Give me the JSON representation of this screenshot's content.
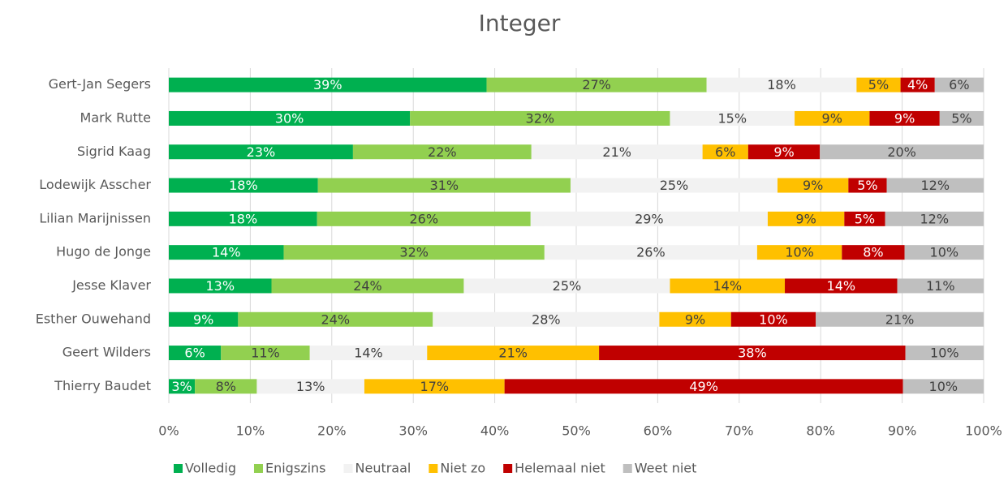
{
  "chart_data": {
    "type": "stacked_bar_horizontal",
    "title": "Integer",
    "categories": [
      "Gert-Jan Segers",
      "Mark Rutte",
      "Sigrid Kaag",
      "Lodewijk Asscher",
      "Lilian Marijnissen",
      "Hugo de Jonge",
      "Jesse Klaver",
      "Esther Ouwehand",
      "Geert Wilders",
      "Thierry Baudet"
    ],
    "series": [
      {
        "name": "Volledig",
        "color": "#00b050",
        "values": [
          39,
          29.6,
          22.6,
          18.3,
          18.2,
          14.1,
          12.6,
          8.5,
          6.4,
          3.2
        ],
        "value_labels": [
          "39%",
          "30%",
          "23%",
          "18%",
          "18%",
          "14%",
          "13%",
          "9%",
          "6%",
          "3%"
        ]
      },
      {
        "name": "Enigszins",
        "color": "#92d050",
        "values": [
          27,
          31.9,
          21.9,
          31.0,
          26.2,
          32.0,
          23.6,
          23.9,
          10.9,
          7.6
        ],
        "value_labels": [
          "27%",
          "32%",
          "22%",
          "31%",
          "26%",
          "32%",
          "24%",
          "24%",
          "11%",
          "8%"
        ]
      },
      {
        "name": "Neutraal",
        "color": "#f2f2f2",
        "values": [
          18.4,
          15.3,
          21.0,
          25.4,
          29.1,
          26.1,
          25.3,
          27.8,
          14.4,
          13.2
        ],
        "value_labels": [
          "18%",
          "15%",
          "21%",
          "25%",
          "29%",
          "26%",
          "25%",
          "28%",
          "14%",
          "13%"
        ]
      },
      {
        "name": "Niet zo",
        "color": "#ffc000",
        "values": [
          5.4,
          9.2,
          5.6,
          8.7,
          9.4,
          10.4,
          14.1,
          8.8,
          21.1,
          17.2
        ],
        "value_labels": [
          "5%",
          "9%",
          "6%",
          "9%",
          "9%",
          "10%",
          "14%",
          "9%",
          "21%",
          "17%"
        ]
      },
      {
        "name": "Helemaal niet",
        "color": "#c00000",
        "values": [
          4.2,
          8.6,
          8.8,
          4.7,
          5.0,
          7.7,
          13.8,
          10.4,
          37.6,
          48.9
        ],
        "value_labels": [
          "4%",
          "9%",
          "9%",
          "5%",
          "5%",
          "8%",
          "14%",
          "10%",
          "38%",
          "49%"
        ]
      },
      {
        "name": "Weet niet",
        "color": "#bfbfbf",
        "values": [
          6,
          5.4,
          20.1,
          11.9,
          12.1,
          9.7,
          10.6,
          20.6,
          9.6,
          9.9
        ],
        "value_labels": [
          "6%",
          "5%",
          "20%",
          "12%",
          "12%",
          "10%",
          "11%",
          "21%",
          "10%",
          "10%"
        ]
      }
    ],
    "xlim": [
      0,
      100
    ],
    "xticks": [
      {
        "value": 0,
        "label": "0%"
      },
      {
        "value": 10,
        "label": "10%"
      },
      {
        "value": 20,
        "label": "20%"
      },
      {
        "value": 30,
        "label": "30%"
      },
      {
        "value": 40,
        "label": "40%"
      },
      {
        "value": 50,
        "label": "50%"
      },
      {
        "value": 60,
        "label": "60%"
      },
      {
        "value": 70,
        "label": "70%"
      },
      {
        "value": 80,
        "label": "80%"
      },
      {
        "value": 90,
        "label": "90%"
      },
      {
        "value": 100,
        "label": "100%"
      }
    ],
    "grid": true,
    "legend": "bottom"
  }
}
